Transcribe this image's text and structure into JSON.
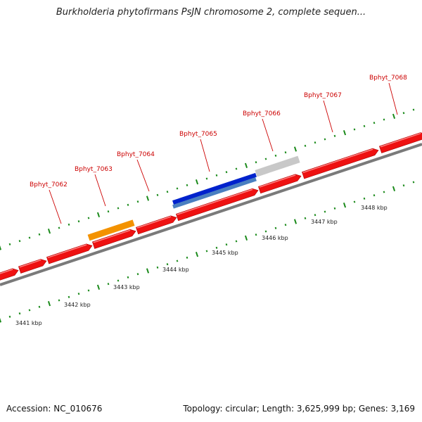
{
  "title": "Burkholderia phytofirmans PsJN chromosome 2, complete sequen...",
  "footer": {
    "accession": "Accession: NC_010676",
    "topology": "Topology: circular; Length: 3,625,999 bp; Genes: 3,169"
  },
  "colors": {
    "backbone": "#888888",
    "gene_forward": "#ee1111",
    "tick": "#1a8a1a",
    "label": "#cc0000",
    "orange_feature": "#f39200",
    "blue_feature": "#0022cc",
    "steel_feature": "#4a7fc0",
    "grey_feature": "#c8c8c8"
  },
  "genes": [
    {
      "locus": "Bphyt_7062"
    },
    {
      "locus": "Bphyt_7063"
    },
    {
      "locus": "Bphyt_7064"
    },
    {
      "locus": "Bphyt_7065"
    },
    {
      "locus": "Bphyt_7066"
    },
    {
      "locus": "Bphyt_7067"
    },
    {
      "locus": "Bphyt_7068"
    }
  ],
  "scale": [
    "3441 kbp",
    "3442 kbp",
    "3443 kbp",
    "3444 kbp",
    "3445 kbp",
    "3446 kbp",
    "3447 kbp",
    "3448 kbp"
  ],
  "icons": [
    "forward-gene-arrow-icon"
  ]
}
